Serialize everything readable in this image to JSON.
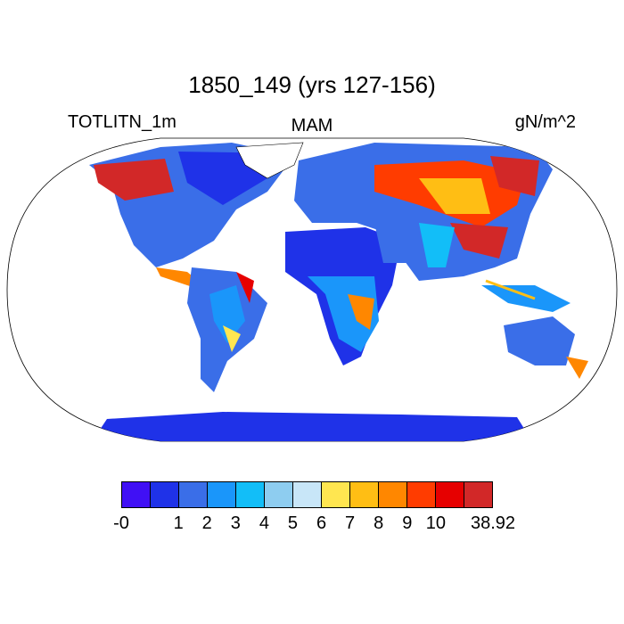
{
  "title": "1850_149 (yrs 127-156)",
  "left_string": "TOTLITN_1m",
  "center_string": "MAM",
  "right_string": "gN/m^2",
  "colorbar": {
    "colors": [
      "#4010f5",
      "#1f32e8",
      "#3a6ee8",
      "#1a96fa",
      "#12bef8",
      "#8ecdf0",
      "#c8e6f8",
      "#ffe650",
      "#ffbe14",
      "#ff8700",
      "#ff3c00",
      "#e60000",
      "#d22828"
    ],
    "labels": [
      "-0",
      "1",
      "2",
      "3",
      "4",
      "5",
      "6",
      "7",
      "8",
      "9",
      "10",
      "38.92"
    ],
    "label_boundaries": [
      0,
      2,
      3,
      4,
      5,
      6,
      7,
      8,
      9,
      10,
      11,
      13
    ]
  }
}
